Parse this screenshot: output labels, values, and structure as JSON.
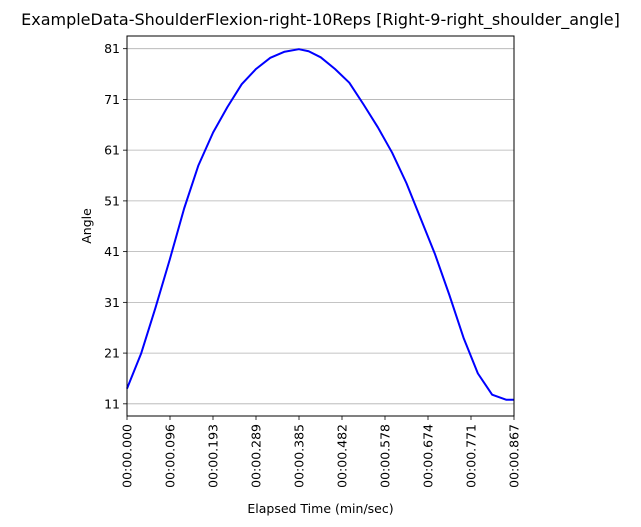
{
  "chart_data": {
    "type": "line",
    "title": "ExampleData-ShoulderFlexion-right-10Reps [Right-9-right_shoulder_angle]",
    "xlabel": "Elapsed Time (min/sec)",
    "ylabel": "Angle",
    "x_tick_labels": [
      "00:00.000",
      "00:00.096",
      "00:00.193",
      "00:00.289",
      "00:00.385",
      "00:00.482",
      "00:00.578",
      "00:00.674",
      "00:00.771",
      "00:00.867"
    ],
    "y_tick_labels": [
      "11",
      "21",
      "31",
      "41",
      "51",
      "61",
      "71",
      "81"
    ],
    "xlim": [
      0,
      0.867
    ],
    "ylim": [
      8.6,
      83.5
    ],
    "grid": "y",
    "line_color": "#0000ff",
    "series": [
      {
        "x": [
          0,
          0.032,
          0.064,
          0.096,
          0.128,
          0.16,
          0.193,
          0.225,
          0.257,
          0.289,
          0.321,
          0.353,
          0.385,
          0.407,
          0.434,
          0.466,
          0.498,
          0.53,
          0.562,
          0.594,
          0.626,
          0.658,
          0.69,
          0.722,
          0.754,
          0.786,
          0.818,
          0.85,
          0.867
        ],
        "y": [
          14,
          21,
          30,
          39.5,
          49.5,
          58,
          64.5,
          69.5,
          74,
          77,
          79.2,
          80.4,
          80.9,
          80.5,
          79.3,
          77,
          74.3,
          70,
          65.5,
          60.5,
          54.5,
          47.5,
          40.5,
          32.5,
          24,
          17,
          12.8,
          11.8,
          11.8
        ]
      }
    ]
  }
}
